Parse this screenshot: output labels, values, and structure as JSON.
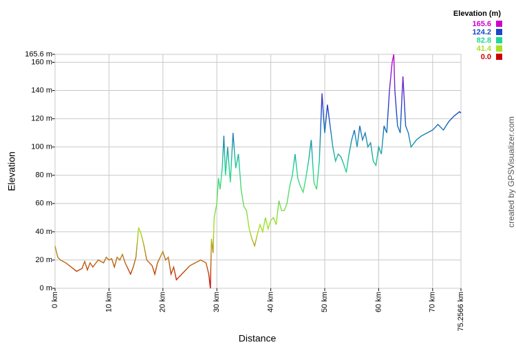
{
  "chart_data": {
    "type": "line",
    "xlabel": "Distance",
    "ylabel": "Elevation",
    "credit": "created by GPSVisualizer.com",
    "x": [
      0,
      0.5,
      1,
      2,
      3,
      4,
      5,
      5.5,
      6,
      6.5,
      7,
      8,
      9,
      9.5,
      10,
      10.5,
      11,
      11.5,
      12,
      12.5,
      13,
      14,
      14.5,
      15,
      15.5,
      16,
      16.5,
      17,
      18,
      18.5,
      19,
      19.5,
      20,
      20.5,
      21,
      21.5,
      22,
      22.5,
      23,
      24,
      25,
      26,
      27,
      28,
      28.5,
      28.8,
      29,
      29.3,
      29.5,
      30,
      30.3,
      30.6,
      31,
      31.3,
      31.6,
      32,
      32.5,
      33,
      33.5,
      34,
      34.5,
      35,
      35.5,
      36,
      36.5,
      37,
      37.5,
      38,
      38.5,
      39,
      39.5,
      40,
      40.5,
      41,
      41.5,
      42,
      42.5,
      43,
      43.5,
      44,
      44.5,
      45,
      45.5,
      46,
      46.5,
      47,
      47.5,
      48,
      48.5,
      49,
      49.5,
      49.8,
      50,
      50.5,
      51,
      51.5,
      52,
      52.5,
      53,
      53.5,
      54,
      54.5,
      55,
      55.5,
      56,
      56.5,
      57,
      57.5,
      58,
      58.5,
      59,
      59.5,
      60,
      60.5,
      61,
      61.5,
      62,
      62.5,
      62.8,
      63,
      63.5,
      64,
      64.5,
      65,
      65.5,
      66,
      67,
      68,
      69,
      70,
      71,
      72,
      73,
      74,
      75,
      75.2566
    ],
    "values": [
      30,
      22,
      20,
      18,
      15,
      12,
      14,
      19,
      13,
      18,
      15,
      20,
      18,
      22,
      20,
      21,
      15,
      22,
      20,
      24,
      18,
      10,
      15,
      22,
      43,
      38,
      30,
      20,
      16,
      10,
      18,
      22,
      26,
      20,
      22,
      10,
      15,
      6,
      8,
      12,
      16,
      18,
      20,
      18,
      10,
      0,
      35,
      25,
      50,
      60,
      78,
      70,
      85,
      108,
      80,
      100,
      75,
      110,
      85,
      95,
      70,
      58,
      55,
      42,
      35,
      30,
      38,
      45,
      40,
      50,
      42,
      48,
      50,
      45,
      62,
      55,
      55,
      60,
      72,
      80,
      95,
      78,
      72,
      68,
      78,
      90,
      105,
      75,
      70,
      90,
      138,
      120,
      110,
      130,
      115,
      100,
      90,
      95,
      93,
      88,
      82,
      95,
      105,
      112,
      100,
      115,
      105,
      110,
      100,
      103,
      90,
      87,
      100,
      95,
      115,
      110,
      140,
      160,
      165.6,
      140,
      115,
      110,
      150,
      115,
      110,
      100,
      105,
      108,
      110,
      112,
      116,
      112,
      118,
      122,
      125,
      124
    ],
    "xlim": [
      0,
      75.2566
    ],
    "ylim": [
      0,
      165.6
    ],
    "xticks": [
      {
        "value": 0,
        "label": "0 km"
      },
      {
        "value": 10,
        "label": "10 km"
      },
      {
        "value": 20,
        "label": "20 km"
      },
      {
        "value": 30,
        "label": "30 km"
      },
      {
        "value": 40,
        "label": "40 km"
      },
      {
        "value": 50,
        "label": "50 km"
      },
      {
        "value": 60,
        "label": "60 km"
      },
      {
        "value": 70,
        "label": "70 km"
      },
      {
        "value": 75.2566,
        "label": "75.2566 km"
      }
    ],
    "yticks": [
      {
        "value": 0,
        "label": "0 m"
      },
      {
        "value": 20,
        "label": "20 m"
      },
      {
        "value": 40,
        "label": "40 m"
      },
      {
        "value": 60,
        "label": "60 m"
      },
      {
        "value": 80,
        "label": "80 m"
      },
      {
        "value": 100,
        "label": "100 m"
      },
      {
        "value": 120,
        "label": "120 m"
      },
      {
        "value": 140,
        "label": "140 m"
      },
      {
        "value": 160,
        "label": "160 m"
      },
      {
        "value": 165.6,
        "label": "165.6 m"
      }
    ],
    "grid": true,
    "legend": {
      "title": "Elevation (m)",
      "values": [
        165.6,
        124.2,
        82.8,
        41.4,
        0
      ],
      "value_labels": [
        "165.6",
        "124.2",
        "82.8",
        "41.4",
        "0.0"
      ],
      "colors": [
        "#cc00cc",
        "#1848c8",
        "#20d890",
        "#a8e020",
        "#cc0000"
      ]
    }
  }
}
